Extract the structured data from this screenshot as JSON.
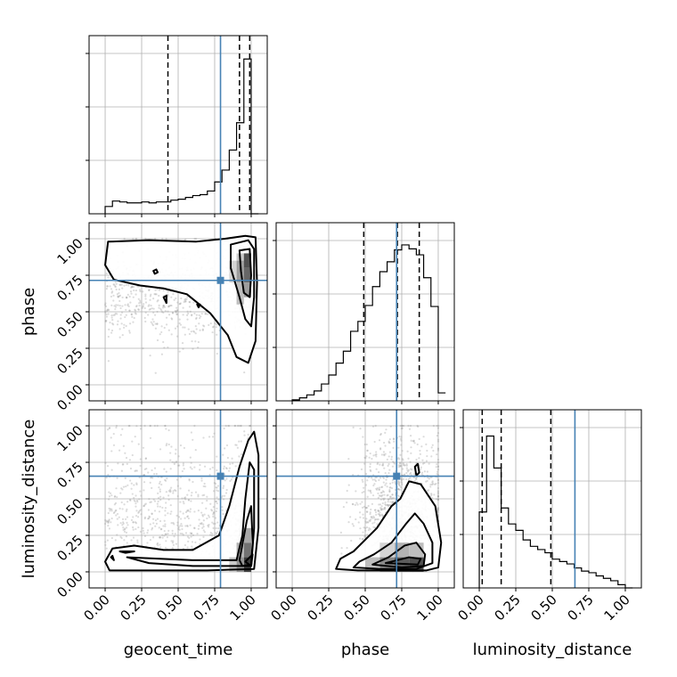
{
  "chart_data": {
    "type": "corner",
    "parameters": [
      "geocent_time",
      "phase",
      "luminosity_distance"
    ],
    "range": [
      0,
      1
    ],
    "tick_labels": [
      "0.00",
      "0.25",
      "0.50",
      "0.75",
      "1.00"
    ],
    "tick_values": [
      0,
      0.25,
      0.5,
      0.75,
      1.0
    ],
    "grid": true,
    "colors": {
      "truth": "#4682b4",
      "hist": "#000000",
      "scatter": "#9a9a9a"
    },
    "truths": {
      "geocent_time": 0.79,
      "phase": 0.715,
      "luminosity_distance": 0.655
    },
    "quantiles": {
      "geocent_time": [
        0.43,
        0.92,
        0.99
      ],
      "phase": [
        0.49,
        0.72,
        0.87
      ],
      "luminosity_distance": [
        0.02,
        0.15,
        0.49
      ]
    },
    "histograms": {
      "geocent_time": {
        "edges": [
          0,
          0.05,
          0.1,
          0.15,
          0.2,
          0.25,
          0.3,
          0.35,
          0.4,
          0.45,
          0.5,
          0.55,
          0.6,
          0.65,
          0.7,
          0.75,
          0.8,
          0.85,
          0.9,
          0.95,
          1.0
        ],
        "counts": [
          8,
          14,
          13,
          12,
          12,
          13,
          12,
          13,
          13,
          15,
          16,
          18,
          20,
          21,
          25,
          35,
          48,
          70,
          100,
          170,
          0
        ]
      },
      "phase": {
        "edges": [
          0,
          0.05,
          0.1,
          0.15,
          0.2,
          0.25,
          0.3,
          0.35,
          0.4,
          0.45,
          0.5,
          0.55,
          0.6,
          0.65,
          0.7,
          0.75,
          0.8,
          0.85,
          0.9,
          0.95,
          1.0
        ],
        "counts": [
          1,
          3,
          6,
          10,
          17,
          26,
          38,
          50,
          70,
          80,
          96,
          115,
          130,
          140,
          152,
          157,
          153,
          147,
          124,
          95,
          8
        ]
      },
      "luminosity_distance": {
        "edges": [
          0,
          0.05,
          0.1,
          0.15,
          0.2,
          0.25,
          0.3,
          0.35,
          0.4,
          0.45,
          0.5,
          0.55,
          0.6,
          0.65,
          0.7,
          0.75,
          0.8,
          0.85,
          0.9,
          0.95,
          1.0
        ],
        "counts": [
          95,
          190,
          150,
          100,
          80,
          72,
          60,
          52,
          48,
          44,
          36,
          33,
          30,
          25,
          21,
          19,
          15,
          12,
          9,
          4,
          0
        ]
      }
    },
    "contours": {
      "geocent_time|phase": [
        [
          [
            0.02,
            0.98
          ],
          [
            0.3,
            0.99
          ],
          [
            0.62,
            0.98
          ],
          [
            0.82,
            1.0
          ],
          [
            0.96,
            1.02
          ],
          [
            1.03,
            1.01
          ],
          [
            1.04,
            0.7
          ],
          [
            1.03,
            0.3
          ],
          [
            0.98,
            0.15
          ],
          [
            0.9,
            0.19
          ],
          [
            0.84,
            0.34
          ],
          [
            0.72,
            0.49
          ],
          [
            0.56,
            0.62
          ],
          [
            0.4,
            0.66
          ],
          [
            0.24,
            0.68
          ],
          [
            0.06,
            0.72
          ],
          [
            0.0,
            0.82
          ],
          [
            0.02,
            0.98
          ]
        ],
        [
          [
            0.86,
            0.96
          ],
          [
            0.98,
            0.99
          ],
          [
            1.02,
            0.93
          ],
          [
            1.02,
            0.6
          ],
          [
            1.0,
            0.4
          ],
          [
            0.96,
            0.45
          ],
          [
            0.92,
            0.6
          ],
          [
            0.86,
            0.8
          ],
          [
            0.86,
            0.96
          ]
        ],
        [
          [
            0.92,
            0.92
          ],
          [
            0.99,
            0.93
          ],
          [
            1.0,
            0.75
          ],
          [
            0.99,
            0.6
          ],
          [
            0.95,
            0.63
          ],
          [
            0.93,
            0.78
          ],
          [
            0.92,
            0.92
          ]
        ],
        [
          [
            0.33,
            0.78
          ],
          [
            0.35,
            0.79
          ],
          [
            0.36,
            0.77
          ],
          [
            0.34,
            0.76
          ],
          [
            0.33,
            0.78
          ]
        ],
        [
          [
            0.4,
            0.6
          ],
          [
            0.42,
            0.61
          ],
          [
            0.42,
            0.56
          ],
          [
            0.4,
            0.6
          ]
        ],
        [
          [
            0.63,
            0.55
          ],
          [
            0.65,
            0.55
          ],
          [
            0.64,
            0.53
          ],
          [
            0.63,
            0.55
          ]
        ]
      ],
      "geocent_time|luminosity_distance": [
        [
          [
            0.0,
            0.07
          ],
          [
            0.03,
            0.01
          ],
          [
            0.3,
            0.01
          ],
          [
            0.7,
            0.01
          ],
          [
            1.02,
            0.02
          ],
          [
            1.05,
            0.3
          ],
          [
            1.05,
            0.8
          ],
          [
            1.02,
            0.96
          ],
          [
            0.98,
            0.9
          ],
          [
            0.92,
            0.72
          ],
          [
            0.85,
            0.45
          ],
          [
            0.78,
            0.25
          ],
          [
            0.6,
            0.15
          ],
          [
            0.4,
            0.15
          ],
          [
            0.2,
            0.18
          ],
          [
            0.05,
            0.16
          ],
          [
            0.0,
            0.07
          ]
        ],
        [
          [
            0.15,
            0.1
          ],
          [
            0.6,
            0.08
          ],
          [
            0.9,
            0.08
          ],
          [
            0.94,
            0.25
          ],
          [
            0.96,
            0.5
          ],
          [
            0.99,
            0.75
          ],
          [
            1.02,
            0.7
          ],
          [
            1.02,
            0.3
          ],
          [
            1.0,
            0.04
          ],
          [
            0.6,
            0.04
          ],
          [
            0.3,
            0.06
          ],
          [
            0.15,
            0.1
          ]
        ],
        [
          [
            0.92,
            0.08
          ],
          [
            0.97,
            0.35
          ],
          [
            1.0,
            0.45
          ],
          [
            1.01,
            0.2
          ],
          [
            1.0,
            0.05
          ],
          [
            0.94,
            0.04
          ],
          [
            0.92,
            0.08
          ]
        ],
        [
          [
            0.96,
            0.07
          ],
          [
            1.01,
            0.12
          ],
          [
            1.0,
            0.04
          ],
          [
            0.96,
            0.07
          ]
        ],
        [
          [
            0.04,
            0.1
          ],
          [
            0.05,
            0.11
          ],
          [
            0.06,
            0.08
          ],
          [
            0.04,
            0.1
          ]
        ],
        [
          [
            0.1,
            0.14
          ],
          [
            0.2,
            0.14
          ],
          [
            0.14,
            0.13
          ],
          [
            0.1,
            0.14
          ]
        ]
      ],
      "phase|luminosity_distance": [
        [
          [
            0.3,
            0.02
          ],
          [
            0.45,
            0.01
          ],
          [
            0.7,
            0.01
          ],
          [
            0.92,
            0.01
          ],
          [
            1.0,
            0.03
          ],
          [
            1.02,
            0.2
          ],
          [
            0.98,
            0.45
          ],
          [
            0.88,
            0.6
          ],
          [
            0.8,
            0.62
          ],
          [
            0.74,
            0.5
          ],
          [
            0.68,
            0.45
          ],
          [
            0.58,
            0.3
          ],
          [
            0.5,
            0.22
          ],
          [
            0.42,
            0.14
          ],
          [
            0.33,
            0.09
          ],
          [
            0.3,
            0.02
          ]
        ],
        [
          [
            0.42,
            0.03
          ],
          [
            0.6,
            0.02
          ],
          [
            0.85,
            0.02
          ],
          [
            0.96,
            0.06
          ],
          [
            0.96,
            0.2
          ],
          [
            0.9,
            0.33
          ],
          [
            0.84,
            0.4
          ],
          [
            0.78,
            0.33
          ],
          [
            0.68,
            0.2
          ],
          [
            0.56,
            0.12
          ],
          [
            0.46,
            0.07
          ],
          [
            0.42,
            0.03
          ]
        ],
        [
          [
            0.55,
            0.05
          ],
          [
            0.75,
            0.03
          ],
          [
            0.9,
            0.04
          ],
          [
            0.91,
            0.12
          ],
          [
            0.85,
            0.2
          ],
          [
            0.77,
            0.18
          ],
          [
            0.66,
            0.1
          ],
          [
            0.55,
            0.05
          ]
        ],
        [
          [
            0.64,
            0.06
          ],
          [
            0.86,
            0.05
          ],
          [
            0.88,
            0.09
          ],
          [
            0.8,
            0.1
          ],
          [
            0.64,
            0.06
          ]
        ],
        [
          [
            0.84,
            0.72
          ],
          [
            0.86,
            0.74
          ],
          [
            0.87,
            0.68
          ],
          [
            0.85,
            0.66
          ],
          [
            0.84,
            0.72
          ]
        ]
      ]
    },
    "density_cells": {
      "geocent_time|phase": [
        [
          0.9,
          0.95,
          0.85,
          0.9,
          0.25
        ],
        [
          0.9,
          0.95,
          0.7,
          0.85,
          0.45
        ],
        [
          0.95,
          1.0,
          0.8,
          0.9,
          0.8
        ],
        [
          0.95,
          1.0,
          0.7,
          0.8,
          0.7
        ],
        [
          0.95,
          1.0,
          0.6,
          0.7,
          0.45
        ],
        [
          0.9,
          0.95,
          0.55,
          0.7,
          0.3
        ],
        [
          0.85,
          0.9,
          0.7,
          0.85,
          0.2
        ]
      ],
      "geocent_time|luminosity_distance": [
        [
          0.95,
          1.0,
          0.0,
          0.1,
          0.9
        ],
        [
          0.9,
          0.95,
          0.0,
          0.1,
          0.5
        ],
        [
          0.95,
          1.0,
          0.1,
          0.2,
          0.65
        ],
        [
          0.9,
          0.95,
          0.1,
          0.2,
          0.35
        ],
        [
          0.95,
          1.0,
          0.2,
          0.3,
          0.4
        ],
        [
          0.85,
          0.9,
          0.0,
          0.1,
          0.25
        ]
      ],
      "phase|luminosity_distance": [
        [
          0.6,
          0.7,
          0.0,
          0.1,
          0.55
        ],
        [
          0.7,
          0.8,
          0.0,
          0.1,
          0.75
        ],
        [
          0.8,
          0.9,
          0.0,
          0.1,
          0.8
        ],
        [
          0.5,
          0.6,
          0.0,
          0.1,
          0.3
        ],
        [
          0.7,
          0.8,
          0.1,
          0.2,
          0.35
        ],
        [
          0.8,
          0.9,
          0.1,
          0.2,
          0.3
        ],
        [
          0.6,
          0.7,
          0.1,
          0.2,
          0.2
        ]
      ]
    },
    "scatter_seed": 7
  }
}
